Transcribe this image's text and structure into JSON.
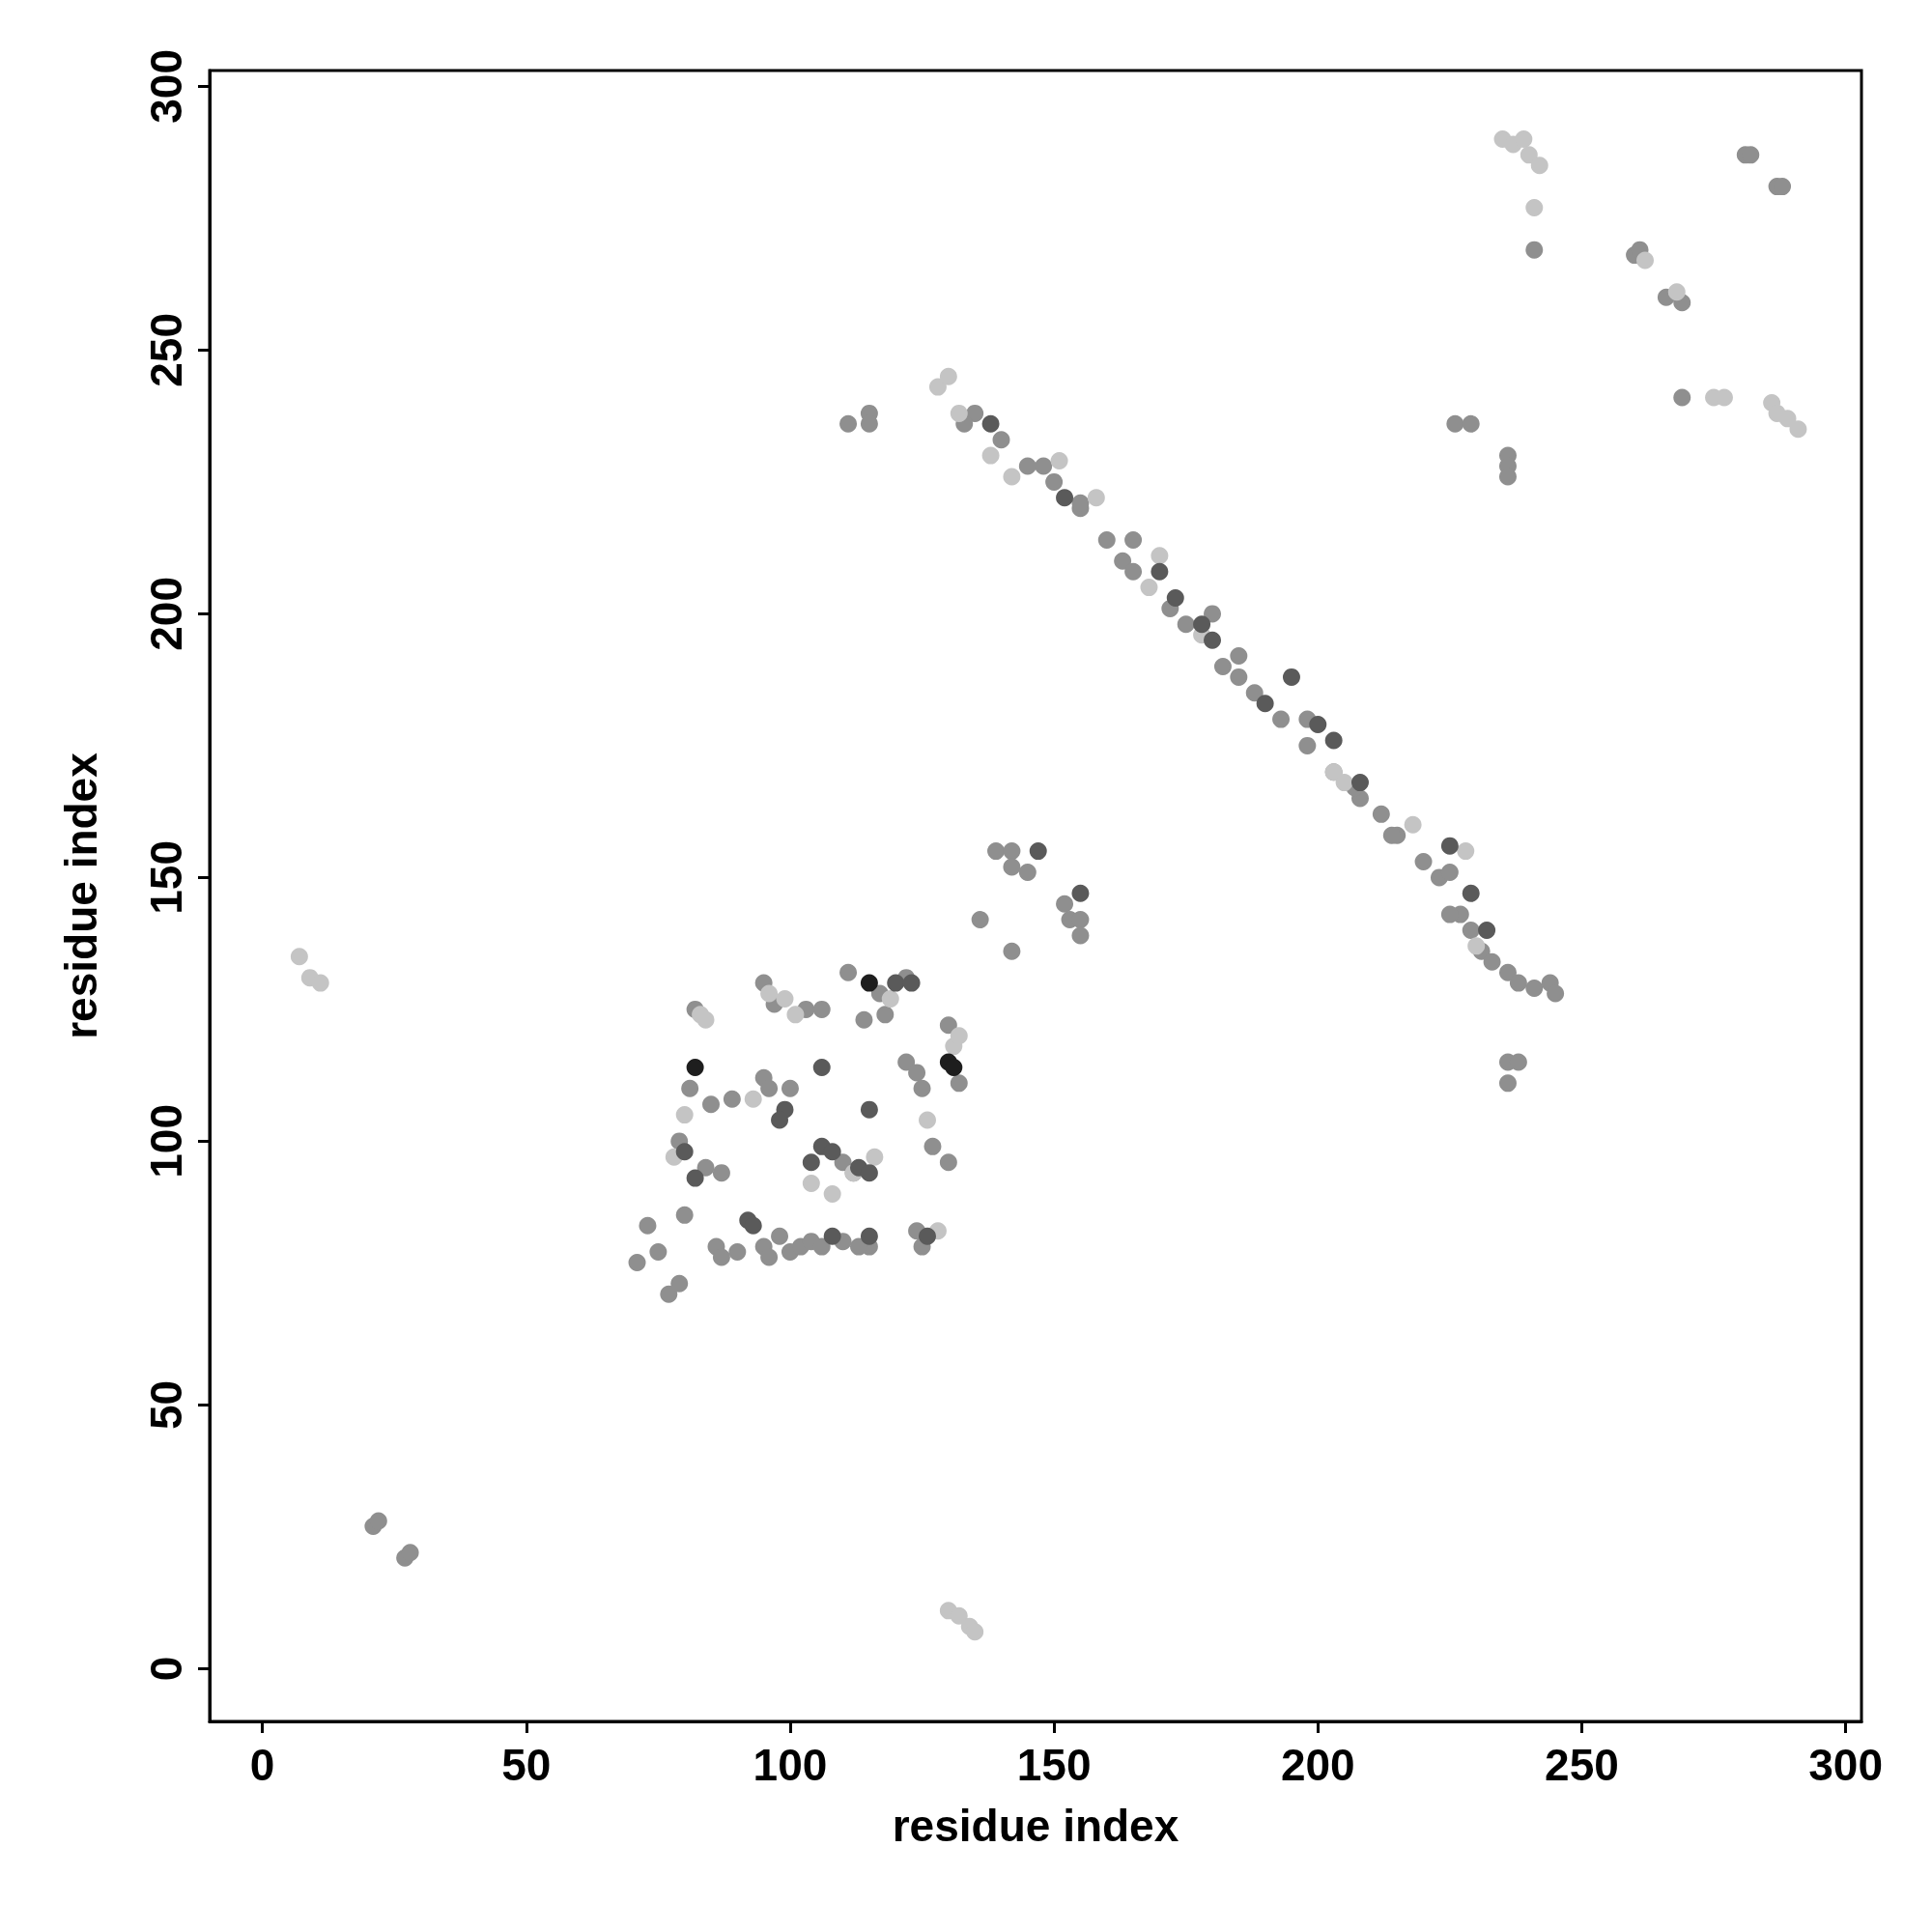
{
  "chart_data": {
    "type": "scatter",
    "xlabel": "residue index",
    "ylabel": "residue index",
    "xlim": [
      -10,
      303
    ],
    "ylim": [
      -10,
      303
    ],
    "xticks": [
      0,
      50,
      100,
      150,
      200,
      250,
      300
    ],
    "yticks": [
      0,
      50,
      100,
      150,
      200,
      250,
      300
    ],
    "grid": false,
    "marker": "circle",
    "series": [
      {
        "color": "#8f8f8f",
        "x": [
          21,
          22,
          27,
          28,
          135,
          140,
          145,
          150,
          155,
          160,
          163,
          165,
          172,
          175,
          182,
          185,
          188,
          193,
          198,
          203,
          208,
          212,
          215,
          220,
          223,
          227,
          229,
          231,
          233,
          236,
          238,
          241,
          244,
          245,
          133,
          148,
          155,
          165,
          180,
          185,
          198,
          207,
          214,
          225,
          225,
          111,
          115,
          115,
          226,
          229,
          236,
          236,
          236,
          236,
          238,
          236,
          241,
          281,
          282,
          287,
          288,
          260,
          261,
          266,
          269,
          269,
          136,
          139,
          142,
          142,
          145,
          142,
          152,
          153,
          155,
          155,
          71,
          73,
          75,
          77,
          79,
          80,
          79,
          81,
          82,
          85,
          84,
          86,
          87,
          90,
          95,
          96,
          98,
          100,
          102,
          104,
          106,
          110,
          115,
          95,
          96,
          100,
          95,
          97,
          103,
          106,
          110,
          112,
          111,
          117,
          122,
          118,
          114,
          122,
          124,
          125,
          127,
          130,
          130,
          132,
          124,
          125,
          113,
          87,
          89
        ],
        "values": [
          27,
          28,
          21,
          22,
          238,
          233,
          228,
          225,
          220,
          214,
          210,
          208,
          201,
          198,
          190,
          188,
          185,
          180,
          175,
          170,
          165,
          162,
          158,
          153,
          150,
          143,
          140,
          136,
          134,
          132,
          130,
          129,
          130,
          128,
          236,
          228,
          221,
          214,
          200,
          192,
          180,
          167,
          158,
          151,
          143,
          236,
          238,
          236,
          236,
          236,
          230,
          228,
          226,
          115,
          115,
          111,
          269,
          287,
          287,
          281,
          281,
          268,
          269,
          260,
          259,
          241,
          142,
          155,
          155,
          152,
          151,
          136,
          145,
          142,
          142,
          139,
          77,
          84,
          79,
          71,
          73,
          86,
          100,
          110,
          125,
          107,
          95,
          80,
          78,
          79,
          80,
          78,
          82,
          79,
          80,
          81,
          80,
          81,
          80,
          112,
          110,
          110,
          130,
          126,
          125,
          125,
          96,
          94,
          132,
          128,
          131,
          124,
          123,
          115,
          113,
          110,
          99,
          96,
          122,
          111,
          83,
          80,
          80,
          94,
          108
        ]
      },
      {
        "color": "#c4c4c4",
        "x": [
          7,
          9,
          11,
          130,
          132,
          134,
          135,
          128,
          130,
          132,
          138,
          142,
          158,
          168,
          170,
          178,
          203,
          205,
          218,
          228,
          230,
          235,
          237,
          239,
          240,
          242,
          241,
          262,
          268,
          275,
          277,
          286,
          287,
          289,
          291,
          78,
          80,
          83,
          84,
          96,
          99,
          93,
          101,
          104,
          112,
          116,
          119,
          131,
          132,
          126,
          128,
          108,
          151
        ],
        "values": [
          135,
          131,
          130,
          11,
          10,
          8,
          7,
          243,
          245,
          238,
          230,
          226,
          222,
          205,
          211,
          196,
          170,
          168,
          160,
          155,
          137,
          290,
          289,
          290,
          287,
          285,
          277,
          267,
          261,
          241,
          241,
          240,
          238,
          237,
          235,
          97,
          105,
          124,
          123,
          128,
          127,
          108,
          124,
          92,
          94,
          97,
          127,
          118,
          120,
          104,
          83,
          90,
          229
        ]
      },
      {
        "color": "#5a5a5a",
        "x": [
          147,
          155,
          138,
          152,
          170,
          173,
          178,
          180,
          190,
          195,
          200,
          203,
          208,
          225,
          229,
          232,
          82,
          80,
          92,
          93,
          108,
          99,
          98,
          104,
          106,
          108,
          113,
          115,
          120,
          123,
          106,
          115,
          115,
          126
        ],
        "values": [
          155,
          147,
          236,
          222,
          208,
          203,
          198,
          195,
          183,
          188,
          179,
          176,
          168,
          156,
          147,
          140,
          93,
          98,
          85,
          84,
          82,
          106,
          104,
          96,
          99,
          98,
          95,
          94,
          130,
          130,
          114,
          106,
          82,
          82
        ]
      },
      {
        "color": "#1e1e1e",
        "x": [
          82,
          115,
          130,
          131
        ],
        "values": [
          114,
          130,
          115,
          114
        ]
      }
    ]
  }
}
